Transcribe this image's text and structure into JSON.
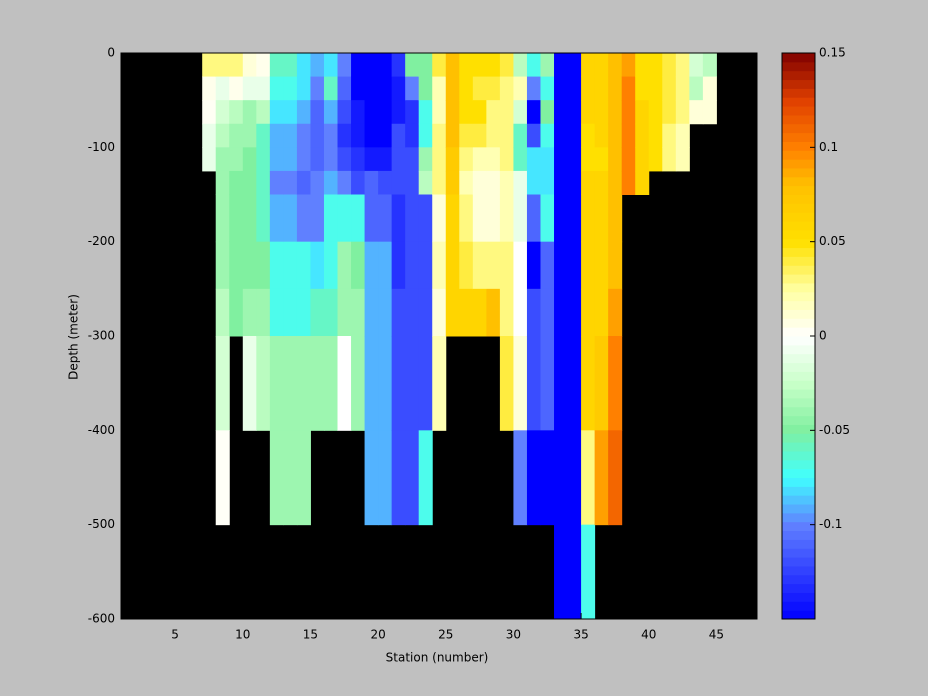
{
  "chart_data": {
    "type": "heatmap",
    "xlabel": "Station (number)",
    "ylabel": "Depth (meter)",
    "xlim": [
      1,
      48
    ],
    "ylim": [
      -600,
      0
    ],
    "xticks": [
      5,
      10,
      15,
      20,
      25,
      30,
      35,
      40,
      45
    ],
    "yticks": [
      -600,
      -500,
      -400,
      -300,
      -200,
      -100,
      0
    ],
    "xbins": [
      7,
      8,
      9,
      10,
      11,
      12,
      13,
      14,
      15,
      16,
      17,
      18,
      19,
      20,
      21,
      22,
      23,
      24,
      25,
      26,
      27,
      28,
      29,
      30,
      31,
      32,
      33,
      34,
      35,
      36,
      37,
      38,
      39,
      40,
      41,
      42,
      43,
      44,
      45
    ],
    "ybins": [
      0,
      -25,
      -50,
      -75,
      -100,
      -125,
      -150,
      -200,
      -250,
      -300,
      -400,
      -500,
      -600
    ],
    "clim": [
      -0.15,
      0.15
    ],
    "cticks": [
      -0.1,
      -0.05,
      0,
      0.05,
      0.1,
      0.15
    ],
    "background": "#000000",
    "colormap": [
      {
        "value": -0.15,
        "color": "#0000ff"
      },
      {
        "value": -0.1,
        "color": "#6080ff"
      },
      {
        "value": -0.075,
        "color": "#40ffff"
      },
      {
        "value": -0.05,
        "color": "#80f0a0"
      },
      {
        "value": -0.025,
        "color": "#c8ffc8"
      },
      {
        "value": 0,
        "color": "#ffffff"
      },
      {
        "value": 0.025,
        "color": "#ffffa0"
      },
      {
        "value": 0.05,
        "color": "#ffe000"
      },
      {
        "value": 0.08,
        "color": "#ffc000"
      },
      {
        "value": 0.1,
        "color": "#ff8000"
      },
      {
        "value": 0.125,
        "color": "#e04000"
      },
      {
        "value": 0.15,
        "color": "#800000"
      }
    ],
    "z": [
      [
        0.03,
        0.005,
        0.003,
        -0.01,
        -0.01,
        null,
        null,
        null,
        null,
        null,
        null,
        null
      ],
      [
        0.03,
        -0.01,
        -0.02,
        -0.03,
        -0.04,
        -0.04,
        -0.04,
        -0.04,
        -0.03,
        -0.02,
        0.002,
        null
      ],
      [
        0.03,
        0.005,
        -0.03,
        -0.04,
        -0.04,
        -0.05,
        -0.05,
        -0.05,
        -0.05,
        null,
        null,
        null
      ],
      [
        0.01,
        -0.01,
        -0.04,
        -0.04,
        -0.05,
        -0.05,
        -0.05,
        -0.05,
        -0.04,
        -0.01,
        null,
        null
      ],
      [
        0.005,
        -0.01,
        -0.03,
        -0.06,
        -0.06,
        -0.06,
        -0.06,
        -0.05,
        -0.04,
        -0.03,
        null,
        null
      ],
      [
        -0.06,
        -0.07,
        -0.08,
        -0.09,
        -0.09,
        -0.1,
        -0.09,
        -0.07,
        -0.07,
        -0.04,
        -0.04,
        null
      ],
      [
        -0.06,
        -0.07,
        -0.08,
        -0.09,
        -0.09,
        -0.1,
        -0.09,
        -0.07,
        -0.07,
        -0.04,
        -0.04,
        null
      ],
      [
        -0.08,
        -0.08,
        -0.09,
        -0.1,
        -0.1,
        -0.11,
        -0.1,
        -0.07,
        -0.07,
        -0.04,
        -0.04,
        null
      ],
      [
        -0.09,
        -0.1,
        -0.11,
        -0.11,
        -0.11,
        -0.1,
        -0.1,
        -0.08,
        -0.06,
        -0.04,
        null,
        null
      ],
      [
        -0.08,
        -0.06,
        -0.09,
        -0.1,
        -0.1,
        -0.09,
        -0.07,
        -0.07,
        -0.06,
        -0.04,
        null,
        null
      ],
      [
        -0.1,
        -0.11,
        -0.12,
        -0.13,
        -0.12,
        -0.1,
        -0.07,
        -0.04,
        -0.04,
        0.0,
        null,
        null
      ],
      [
        -0.15,
        -0.15,
        -0.14,
        -0.14,
        -0.13,
        -0.12,
        -0.07,
        -0.05,
        -0.04,
        -0.04,
        null,
        null
      ],
      [
        -0.15,
        -0.15,
        -0.15,
        -0.15,
        -0.14,
        -0.11,
        -0.11,
        -0.09,
        -0.09,
        -0.09,
        -0.09,
        null
      ],
      [
        -0.15,
        -0.15,
        -0.15,
        -0.15,
        -0.14,
        -0.12,
        -0.11,
        -0.09,
        -0.09,
        -0.09,
        -0.09,
        null
      ],
      [
        -0.13,
        -0.14,
        -0.14,
        -0.12,
        -0.12,
        -0.12,
        -0.13,
        -0.13,
        -0.12,
        -0.12,
        -0.12,
        null
      ],
      [
        -0.05,
        -0.1,
        -0.13,
        -0.13,
        -0.12,
        -0.12,
        -0.12,
        -0.12,
        -0.12,
        -0.12,
        -0.12,
        null
      ],
      [
        -0.05,
        -0.05,
        -0.07,
        -0.07,
        -0.04,
        -0.03,
        -0.12,
        -0.12,
        -0.12,
        -0.12,
        -0.07,
        null
      ],
      [
        0.04,
        0.02,
        0.02,
        0.03,
        0.03,
        0.03,
        0.01,
        0.02,
        0.01,
        0.02,
        null,
        null
      ],
      [
        0.08,
        0.08,
        0.08,
        0.08,
        0.07,
        0.07,
        0.06,
        0.06,
        0.06,
        null,
        null,
        null
      ],
      [
        0.05,
        0.05,
        0.05,
        0.04,
        0.03,
        0.02,
        0.03,
        0.04,
        0.06,
        null,
        null,
        null
      ],
      [
        0.05,
        0.04,
        0.05,
        0.04,
        0.02,
        0.01,
        0.01,
        0.03,
        0.06,
        null,
        null,
        null
      ],
      [
        0.05,
        0.04,
        0.03,
        0.03,
        0.02,
        0.01,
        0.01,
        0.03,
        0.08,
        null,
        null,
        null
      ],
      [
        0.04,
        0.03,
        0.03,
        0.03,
        0.03,
        0.02,
        0.02,
        0.03,
        0.03,
        0.04,
        null,
        null
      ],
      [
        -0.03,
        0.02,
        -0.02,
        -0.06,
        -0.06,
        -0.01,
        -0.01,
        0.0,
        0.0,
        0.01,
        -0.1,
        null
      ],
      [
        -0.07,
        -0.1,
        -0.15,
        -0.12,
        -0.08,
        -0.08,
        -0.11,
        -0.15,
        -0.12,
        -0.12,
        -0.15,
        null
      ],
      [
        -0.04,
        -0.07,
        -0.05,
        -0.07,
        -0.08,
        -0.08,
        -0.07,
        -0.11,
        -0.11,
        -0.11,
        -0.15,
        null
      ],
      [
        -0.15,
        -0.15,
        -0.15,
        -0.15,
        -0.15,
        -0.15,
        -0.15,
        -0.15,
        -0.15,
        -0.15,
        -0.15,
        -0.15
      ],
      [
        -0.15,
        -0.15,
        -0.15,
        -0.15,
        -0.15,
        -0.15,
        -0.15,
        -0.15,
        -0.15,
        -0.15,
        -0.15,
        -0.15
      ],
      [
        0.06,
        0.06,
        0.06,
        0.05,
        0.05,
        0.06,
        0.06,
        0.06,
        0.06,
        0.06,
        0.03,
        -0.07
      ],
      [
        0.06,
        0.06,
        0.06,
        0.06,
        0.05,
        0.06,
        0.06,
        0.06,
        0.06,
        0.07,
        0.09,
        null
      ],
      [
        0.08,
        0.08,
        0.08,
        0.08,
        0.08,
        0.08,
        0.08,
        0.08,
        0.09,
        0.1,
        0.11,
        null
      ],
      [
        0.09,
        0.1,
        0.1,
        0.1,
        0.1,
        0.1,
        null,
        null,
        null,
        null,
        null,
        null
      ],
      [
        0.05,
        0.05,
        0.06,
        0.06,
        0.06,
        0.06,
        null,
        null,
        null,
        null,
        null,
        null
      ],
      [
        0.05,
        0.05,
        0.05,
        0.05,
        0.05,
        null,
        null,
        null,
        null,
        null,
        null,
        null
      ],
      [
        0.04,
        0.04,
        0.04,
        0.03,
        0.03,
        null,
        null,
        null,
        null,
        null,
        null,
        null
      ],
      [
        0.03,
        0.03,
        0.03,
        0.02,
        0.02,
        null,
        null,
        null,
        null,
        null,
        null,
        null
      ],
      [
        -0.02,
        -0.03,
        0.01,
        null,
        null,
        null,
        null,
        null,
        null,
        null,
        null,
        null
      ],
      [
        -0.03,
        0.01,
        0.01,
        null,
        null,
        null,
        null,
        null,
        null,
        null,
        null,
        null
      ]
    ]
  }
}
